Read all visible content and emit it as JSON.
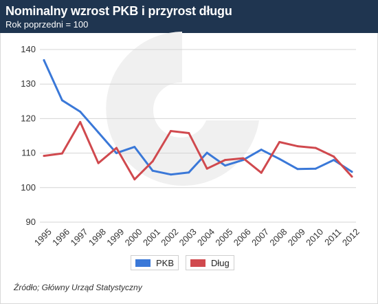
{
  "header": {
    "title": "Nominalny wzrost PKB i przyrost długu",
    "subtitle": "Rok poprzedni = 100"
  },
  "colors": {
    "header_bg": "#1f3550",
    "pkb": "#3a78d8",
    "dlug": "#d0494e",
    "grid": "#d4d4d4"
  },
  "chart_data": {
    "type": "line",
    "categories": [
      "1995",
      "1996",
      "1997",
      "1998",
      "1999",
      "2000",
      "2001",
      "2002",
      "2003",
      "2004",
      "2005",
      "2006",
      "2007",
      "2008",
      "2009",
      "2010",
      "2011",
      "2012"
    ],
    "series": [
      {
        "name": "PKB",
        "values": [
          136.9,
          125.3,
          122.0,
          116.0,
          110.0,
          111.8,
          104.9,
          103.8,
          104.4,
          110.1,
          106.4,
          108.0,
          111.0,
          108.3,
          105.4,
          105.5,
          108.0,
          104.6
        ]
      },
      {
        "name": "Dług",
        "values": [
          109.2,
          109.9,
          119.0,
          107.1,
          111.5,
          102.4,
          107.6,
          116.4,
          115.8,
          105.5,
          108.0,
          108.5,
          104.3,
          113.2,
          112.0,
          111.5,
          109.0,
          103.2
        ]
      }
    ],
    "yticks": [
      90,
      100,
      110,
      120,
      130,
      140
    ],
    "ylim": [
      90,
      140
    ],
    "grid": true,
    "legend_position": "bottom-center"
  },
  "legend": {
    "items": [
      {
        "label": "PKB"
      },
      {
        "label": "Dług"
      }
    ]
  },
  "source": "Źródło; Główny Urząd Statystyczny"
}
